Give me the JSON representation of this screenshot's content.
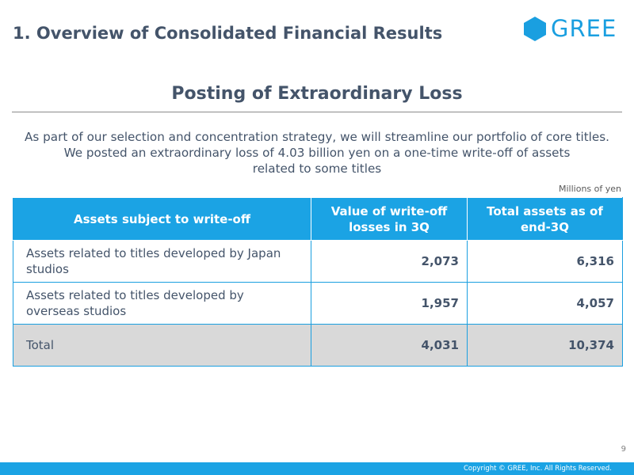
{
  "header": {
    "section_title": "1. Overview of Consolidated Financial Results",
    "logo_text": "GREE",
    "logo_color": "#1a9fe0"
  },
  "slide": {
    "heading": "Posting of Extraordinary Loss",
    "intro_lines": [
      "As part of our selection and concentration strategy, we will streamline our portfolio of core titles.",
      "We posted an extraordinary loss of 4.03 billion yen on a one-time write-off of assets",
      "related to some titles"
    ],
    "unit_note": "Millions of yen"
  },
  "table": {
    "headers": [
      "Assets subject to write-off",
      "Value of write-off losses in 3Q",
      "Total assets as of end-3Q"
    ],
    "rows": [
      {
        "label": "Assets related to titles developed by Japan studios",
        "writeoff": "2,073",
        "total_assets": "6,316"
      },
      {
        "label": "Assets related to titles developed by overseas studios",
        "writeoff": "1,957",
        "total_assets": "4,057"
      }
    ],
    "total_row": {
      "label": "Total",
      "writeoff": "4,031",
      "total_assets": "10,374"
    }
  },
  "footer": {
    "page_number": "9",
    "copyright": "Copyright © GREE, Inc. All Rights Reserved.",
    "bar_color": "#1ba3e4"
  }
}
